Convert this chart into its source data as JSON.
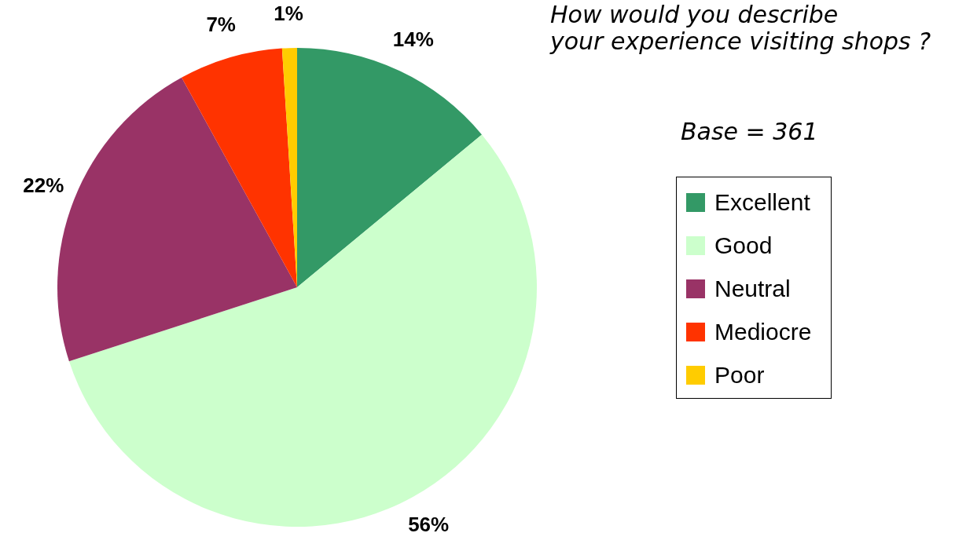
{
  "chart_data": {
    "type": "pie",
    "title": "How would you describe\nyour experience visiting shops ?",
    "subtitle": "Base = 361",
    "categories": [
      "Excellent",
      "Good",
      "Neutral",
      "Mediocre",
      "Poor"
    ],
    "values": [
      14,
      56,
      22,
      7,
      1
    ],
    "colors": [
      "#339966",
      "#ccffcc",
      "#993366",
      "#ff3300",
      "#ffcc00"
    ],
    "value_labels": [
      "14%",
      "56%",
      "22%",
      "7%",
      "1%"
    ],
    "legend": "right"
  }
}
